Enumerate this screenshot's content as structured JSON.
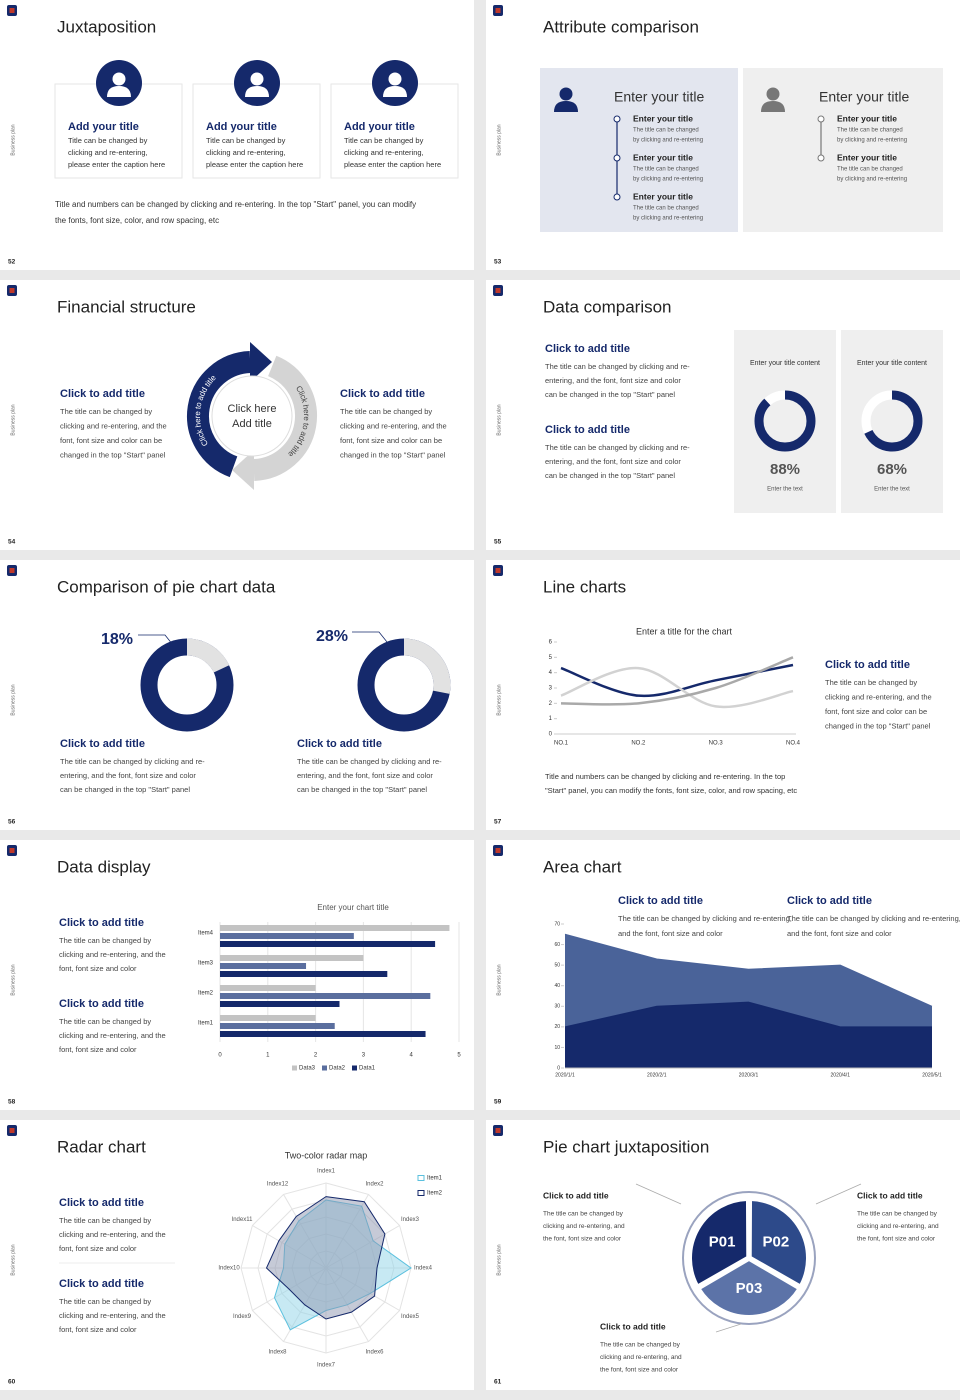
{
  "slides": [
    {
      "number": "52",
      "side": "Business plan",
      "title": "Juxtaposition",
      "cards": [
        {
          "title": "Add your title",
          "text": [
            "Title can be changed by",
            "clicking and re-entering,",
            "please enter the caption here"
          ]
        },
        {
          "title": "Add your title",
          "text": [
            "Title can be changed by",
            "clicking and re-entering,",
            "please enter the caption here"
          ]
        },
        {
          "title": "Add your title",
          "text": [
            "Title can be changed by",
            "clicking and re-entering,",
            "please enter the caption here"
          ]
        }
      ],
      "note": [
        "Title and numbers can be changed by clicking and re-entering. In the top \"Start\" panel, you can modify",
        "the fonts, font size, color, and row spacing, etc"
      ]
    },
    {
      "number": "53",
      "side": "Business plan",
      "title": "Attribute comparison",
      "panels": [
        {
          "title": "Enter your title",
          "items": [
            {
              "title": "Enter your title",
              "text": [
                "The title can be changed",
                "by clicking and re-entering"
              ]
            },
            {
              "title": "Enter your title",
              "text": [
                "The title can be changed",
                "by clicking and re-entering"
              ]
            },
            {
              "title": "Enter your title",
              "text": [
                "The title can be changed",
                "by clicking and re-entering"
              ]
            }
          ]
        },
        {
          "title": "Enter your title",
          "items": [
            {
              "title": "Enter your title",
              "text": [
                "The title can be changed",
                "by clicking and re-entering"
              ]
            },
            {
              "title": "Enter your title",
              "text": [
                "The title can be changed",
                "by clicking and re-entering"
              ]
            }
          ]
        }
      ]
    },
    {
      "number": "54",
      "side": "Business plan",
      "title": "Financial structure",
      "blocks": [
        {
          "title": "Click to add title",
          "text": [
            "The title can be changed by",
            "clicking and re-entering, and the",
            "font, font size and color can be",
            "changed in the top \"Start\" panel"
          ]
        },
        {
          "title": "Click to add title",
          "text": [
            "The title can be changed by",
            "clicking and re-entering, and the",
            "font, font size and color can be",
            "changed in the top \"Start\" panel"
          ]
        }
      ],
      "ring": [
        "Click here to add title",
        "Click here to add title"
      ],
      "center": [
        "Click here",
        "Add title"
      ]
    },
    {
      "number": "55",
      "side": "Business plan",
      "title": "Data comparison",
      "blocks": [
        {
          "title": "Click to add title",
          "text": [
            "The title can be changed by clicking and re-",
            "entering, and the font, font size and color",
            "can be changed in the top \"Start\" panel"
          ]
        },
        {
          "title": "Click to add title",
          "text": [
            "The title can be changed by clicking and re-",
            "entering, and the font, font size and color",
            "can be changed in the top \"Start\" panel"
          ]
        }
      ],
      "donuts": [
        {
          "label": "Enter your title content",
          "value": 88,
          "value_label": "88%",
          "caption": "Enter the text",
          "color": "#15296b",
          "rest_color": "#ffffff"
        },
        {
          "label": "Enter your title content",
          "value": 68,
          "value_label": "68%",
          "caption": "Enter the text",
          "color": "#15296b",
          "rest_color": "#ffffff"
        }
      ]
    },
    {
      "number": "56",
      "side": "Business plan",
      "title": "Comparison of pie chart data",
      "donuts": [
        {
          "value": 18,
          "value_label": "18%",
          "color": "#e2e2e2",
          "rest_color": "#15296b"
        },
        {
          "value": 28,
          "value_label": "28%",
          "color": "#e2e2e2",
          "rest_color": "#15296b"
        }
      ],
      "blocks": [
        {
          "title": "Click to add title",
          "text": [
            "The title can be changed by clicking and re-",
            "entering, and the font, font size and color",
            "can be changed in the top \"Start\" panel"
          ]
        },
        {
          "title": "Click to add title",
          "text": [
            "The title can be changed by clicking and re-",
            "entering, and the font, font size and color",
            "can be changed in the top \"Start\" panel"
          ]
        }
      ]
    },
    {
      "number": "57",
      "side": "Business plan",
      "title": "Line charts",
      "chart": {
        "type": "line",
        "title": "Enter a title for the chart",
        "categories": [
          "NO.1",
          "NO.2",
          "NO.3",
          "NO.4"
        ],
        "ylim": [
          0,
          6
        ],
        "yticks": [
          0,
          1,
          2,
          3,
          4,
          5,
          6
        ],
        "series": [
          {
            "color": "#15296b",
            "values": [
              4.3,
              2.5,
              3.5,
              4.5
            ]
          },
          {
            "color": "#d2d2d2",
            "values": [
              2.5,
              4.3,
              1.8,
              2.8
            ]
          },
          {
            "color": "#a9a9a9",
            "values": [
              2,
              2,
              3,
              5
            ]
          }
        ]
      },
      "block": {
        "title": "Click to add title",
        "text": [
          "The title can be changed by",
          "clicking and re-entering, and the",
          "font, font size and color can be",
          "changed in the top \"Start\" panel"
        ]
      },
      "note": [
        "Title and numbers can be changed by clicking and re-entering. In the top",
        "\"Start\" panel, you can modify the fonts, font size, color, and row spacing, etc"
      ]
    },
    {
      "number": "58",
      "side": "Business plan",
      "title": "Data display",
      "blocks": [
        {
          "title": "Click to add title",
          "text": [
            "The title can be changed by",
            "clicking and re-entering, and the",
            "font, font size and color"
          ]
        },
        {
          "title": "Click to add title",
          "text": [
            "The title can be changed by",
            "clicking and re-entering, and the",
            "font, font size and color"
          ]
        }
      ],
      "chart": {
        "type": "bar",
        "orientation": "horizontal",
        "title": "Enter your chart title",
        "categories": [
          "Item1",
          "Item2",
          "Item3",
          "Item4"
        ],
        "xlim": [
          0,
          5
        ],
        "xticks": [
          0,
          1,
          2,
          3,
          4,
          5
        ],
        "grid": true,
        "series": [
          {
            "name": "Data3",
            "color": "#c3c3c3",
            "values": [
              2,
              2,
              3,
              4.8
            ]
          },
          {
            "name": "Data2",
            "color": "#5a6e9e",
            "values": [
              2.4,
              4.4,
              1.8,
              2.8
            ]
          },
          {
            "name": "Data1",
            "color": "#15296b",
            "values": [
              4.3,
              2.5,
              3.5,
              4.5
            ]
          }
        ]
      }
    },
    {
      "number": "59",
      "side": "Business plan",
      "title": "Area chart",
      "blocks": [
        {
          "title": "Click to add title",
          "text": [
            "The title can be changed by clicking and re-entering,",
            "and the font, font size and color"
          ]
        },
        {
          "title": "Click to add title",
          "text": [
            "The title can be changed by clicking and re-entering,",
            "and the font, font size and color"
          ]
        }
      ],
      "chart": {
        "type": "area",
        "categories": [
          "2020/1/1",
          "2020/2/1",
          "2020/3/1",
          "2020/4/1",
          "2020/5/1"
        ],
        "ylim": [
          0,
          70
        ],
        "yticks": [
          0,
          10,
          20,
          30,
          40,
          50,
          60,
          70
        ],
        "series": [
          {
            "color": "#4a6399",
            "values": [
              65,
              53,
              48,
              50,
              30
            ]
          },
          {
            "color": "#15296b",
            "values": [
              20,
              30,
              32,
              20,
              20
            ]
          }
        ]
      }
    },
    {
      "number": "60",
      "side": "Business plan",
      "title": "Radar chart",
      "blocks": [
        {
          "title": "Click to add title",
          "text": [
            "The title can be changed by",
            "clicking and re-entering, and the",
            "font, font size and color"
          ]
        },
        {
          "title": "Click to add title",
          "text": [
            "The title can be changed by",
            "clicking and re-entering, and the",
            "font, font size and color"
          ]
        }
      ],
      "chart": {
        "type": "radar",
        "title": "Two-color radar map",
        "categories": [
          "Index1",
          "Index2",
          "Index3",
          "Index4",
          "Index5",
          "Index6",
          "Index7",
          "Index8",
          "Index9",
          "Index10",
          "Index11",
          "Index12"
        ],
        "rlim": [
          0,
          5
        ],
        "series": [
          {
            "name": "Item1",
            "color": "#5bc0de",
            "values": [
              4,
              4.2,
              3.2,
              5,
              3,
              2.5,
              2.5,
              4.2,
              3.5,
              2.5,
              2.8,
              3.2
            ]
          },
          {
            "name": "Item2",
            "color": "#15296b",
            "values": [
              4.2,
              4.5,
              4,
              3,
              3.3,
              3,
              3,
              2.5,
              2.5,
              3.5,
              3.2,
              3.5
            ]
          }
        ]
      }
    },
    {
      "number": "61",
      "side": "Business plan",
      "title": "Pie chart juxtaposition",
      "segments": [
        "P01",
        "P02",
        "P03"
      ],
      "blocks": [
        {
          "title": "Click to add title",
          "text": [
            "The title can be changed by",
            "clicking and re-entering, and",
            "the font, font size and color"
          ]
        },
        {
          "title": "Click to add title",
          "text": [
            "The title can be changed by",
            "clicking and re-entering, and",
            "the font, font size and color"
          ]
        },
        {
          "title": "Click to add title",
          "text": [
            "The title can be changed by",
            "clicking and re-entering, and",
            "the font, font size and color"
          ]
        }
      ]
    }
  ]
}
